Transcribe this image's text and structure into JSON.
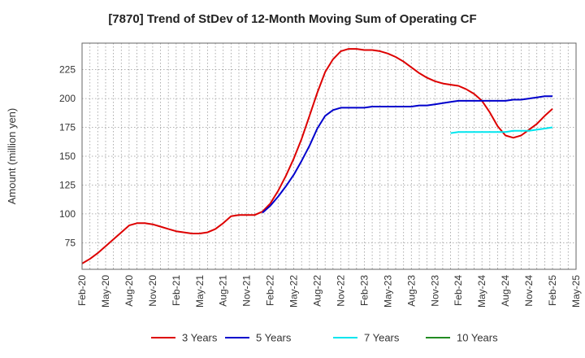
{
  "chart_data": {
    "type": "line",
    "title": "[7870]  Trend of StDev of 12-Month Moving Sum of Operating CF",
    "xlabel": "",
    "ylabel": "Amount (million yen)",
    "x_ticks": [
      "Feb-20",
      "May-20",
      "Aug-20",
      "Nov-20",
      "Feb-21",
      "May-21",
      "Aug-21",
      "Nov-21",
      "Feb-22",
      "May-22",
      "Aug-22",
      "Nov-22",
      "Feb-23",
      "May-23",
      "Aug-23",
      "Nov-23",
      "Feb-24",
      "May-24",
      "Aug-24",
      "Nov-24",
      "Feb-25",
      "May-25"
    ],
    "xlim": [
      "Feb-20",
      "May-25"
    ],
    "y_ticks": [
      75,
      100,
      125,
      150,
      175,
      200,
      225
    ],
    "ylim": [
      52,
      248
    ],
    "grid": true,
    "legend_position": "bottom",
    "series": [
      {
        "name": "3 Years",
        "color": "#dd0000",
        "x": [
          "Feb-20",
          "Mar-20",
          "Apr-20",
          "May-20",
          "Jun-20",
          "Jul-20",
          "Aug-20",
          "Sep-20",
          "Oct-20",
          "Nov-20",
          "Dec-20",
          "Jan-21",
          "Feb-21",
          "Mar-21",
          "Apr-21",
          "May-21",
          "Jun-21",
          "Jul-21",
          "Aug-21",
          "Sep-21",
          "Oct-21",
          "Nov-21",
          "Dec-21",
          "Jan-22",
          "Feb-22",
          "Mar-22",
          "Apr-22",
          "May-22",
          "Jun-22",
          "Jul-22",
          "Aug-22",
          "Sep-22",
          "Oct-22",
          "Nov-22",
          "Dec-22",
          "Jan-23",
          "Feb-23",
          "Mar-23",
          "Apr-23",
          "May-23",
          "Jun-23",
          "Jul-23",
          "Aug-23",
          "Sep-23",
          "Oct-23",
          "Nov-23",
          "Dec-23",
          "Jan-24",
          "Feb-24",
          "Mar-24",
          "Apr-24",
          "May-24",
          "Jun-24",
          "Jul-24",
          "Aug-24",
          "Sep-24",
          "Oct-24",
          "Nov-24",
          "Dec-24",
          "Jan-25",
          "Feb-25"
        ],
        "values": [
          57,
          61,
          66,
          72,
          78,
          84,
          90,
          92,
          92,
          91,
          89,
          87,
          85,
          84,
          83,
          83,
          84,
          87,
          92,
          98,
          99,
          99,
          99,
          102,
          109,
          120,
          133,
          148,
          165,
          185,
          205,
          223,
          234,
          241,
          243,
          243,
          242,
          242,
          241,
          239,
          236,
          232,
          227,
          222,
          218,
          215,
          213,
          212,
          211,
          208,
          204,
          198,
          188,
          176,
          168,
          166,
          168,
          173,
          178,
          185,
          191
        ]
      },
      {
        "name": "5 Years",
        "color": "#0000cc",
        "x": [
          "Jan-22",
          "Feb-22",
          "Mar-22",
          "Apr-22",
          "May-22",
          "Jun-22",
          "Jul-22",
          "Aug-22",
          "Sep-22",
          "Oct-22",
          "Nov-22",
          "Dec-22",
          "Jan-23",
          "Feb-23",
          "Mar-23",
          "Apr-23",
          "May-23",
          "Jun-23",
          "Jul-23",
          "Aug-23",
          "Sep-23",
          "Oct-23",
          "Nov-23",
          "Dec-23",
          "Jan-24",
          "Feb-24",
          "Mar-24",
          "Apr-24",
          "May-24",
          "Jun-24",
          "Jul-24",
          "Aug-24",
          "Sep-24",
          "Oct-24",
          "Nov-24",
          "Dec-24",
          "Jan-25",
          "Feb-25"
        ],
        "values": [
          101,
          107,
          115,
          124,
          134,
          146,
          159,
          174,
          185,
          190,
          192,
          192,
          192,
          192,
          193,
          193,
          193,
          193,
          193,
          193,
          194,
          194,
          195,
          196,
          197,
          198,
          198,
          198,
          198,
          198,
          198,
          198,
          199,
          199,
          200,
          201,
          202,
          202
        ]
      },
      {
        "name": "7 Years",
        "color": "#00e5ee",
        "x": [
          "Jan-24",
          "Feb-24",
          "Mar-24",
          "Apr-24",
          "May-24",
          "Jun-24",
          "Jul-24",
          "Aug-24",
          "Sep-24",
          "Oct-24",
          "Nov-24",
          "Dec-24",
          "Jan-25",
          "Feb-25"
        ],
        "values": [
          170,
          171,
          171,
          171,
          171,
          171,
          171,
          171,
          172,
          172,
          172,
          173,
          174,
          175
        ]
      },
      {
        "name": "10 Years",
        "color": "#228b22",
        "x": [],
        "values": []
      }
    ]
  }
}
